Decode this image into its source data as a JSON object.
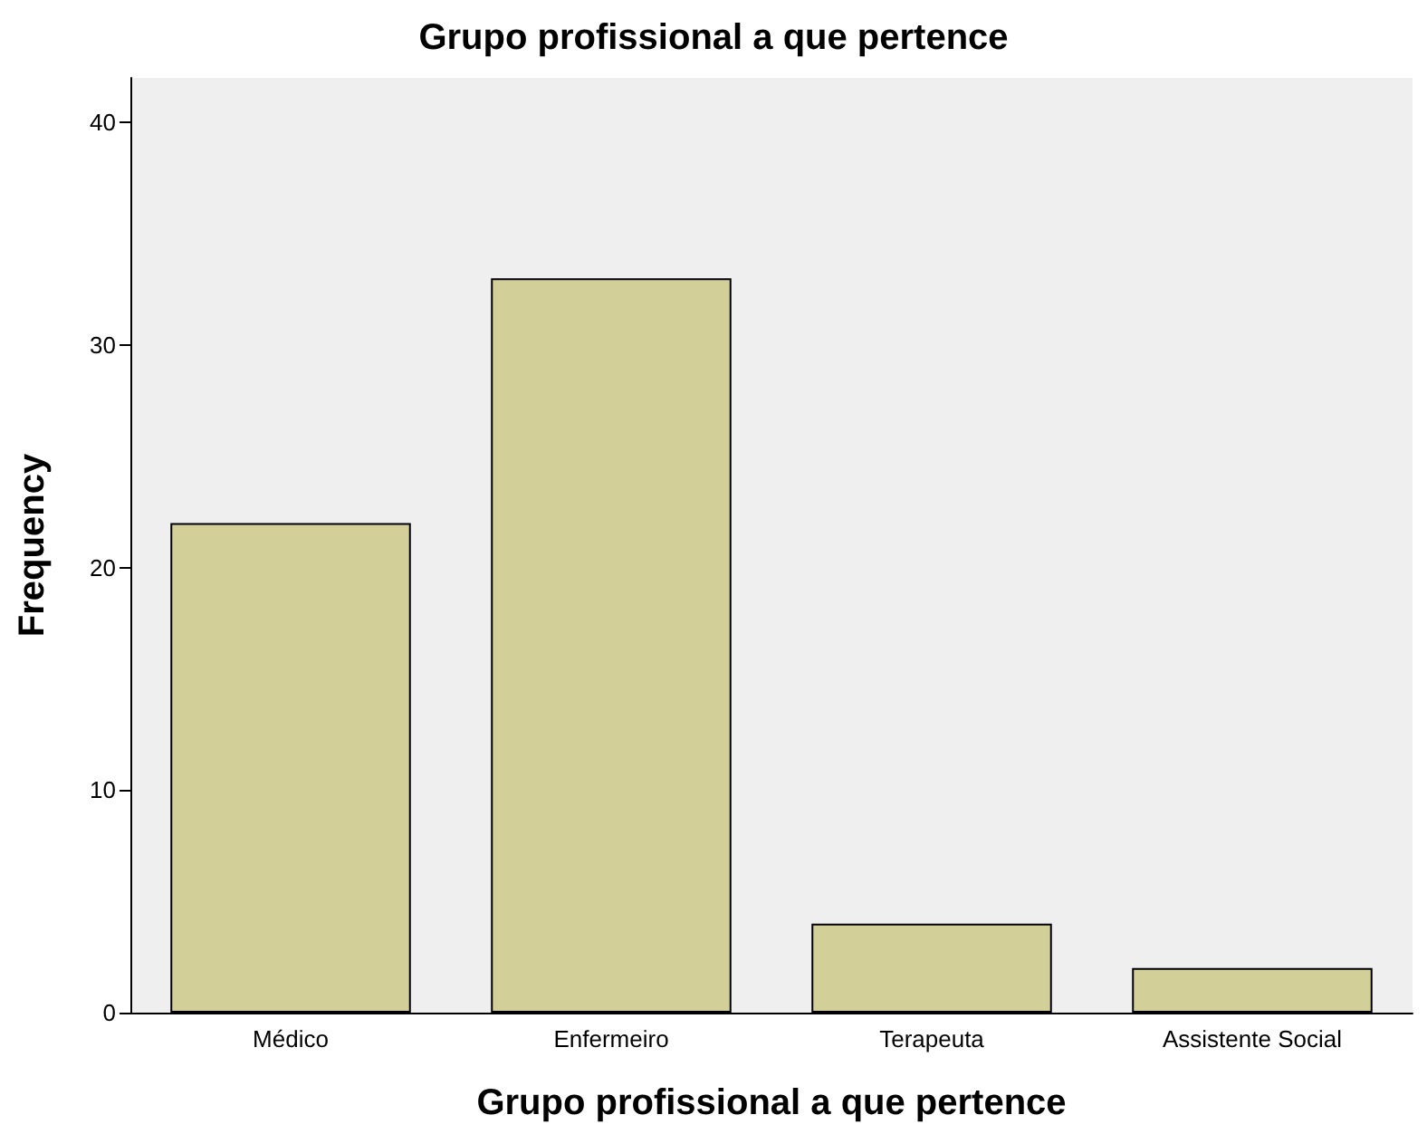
{
  "chart_data": {
    "type": "bar",
    "title": "Grupo profissional a que pertence",
    "xlabel": "Grupo profissional a que pertence",
    "ylabel": "Frequency",
    "categories": [
      "Médico",
      "Enfermeiro",
      "Terapeuta",
      "Assistente Social"
    ],
    "values": [
      22,
      33,
      4,
      2
    ],
    "color": "#d3cf98",
    "ylim": [
      0,
      42
    ],
    "yticks": [
      0,
      10,
      20,
      30,
      40
    ]
  }
}
